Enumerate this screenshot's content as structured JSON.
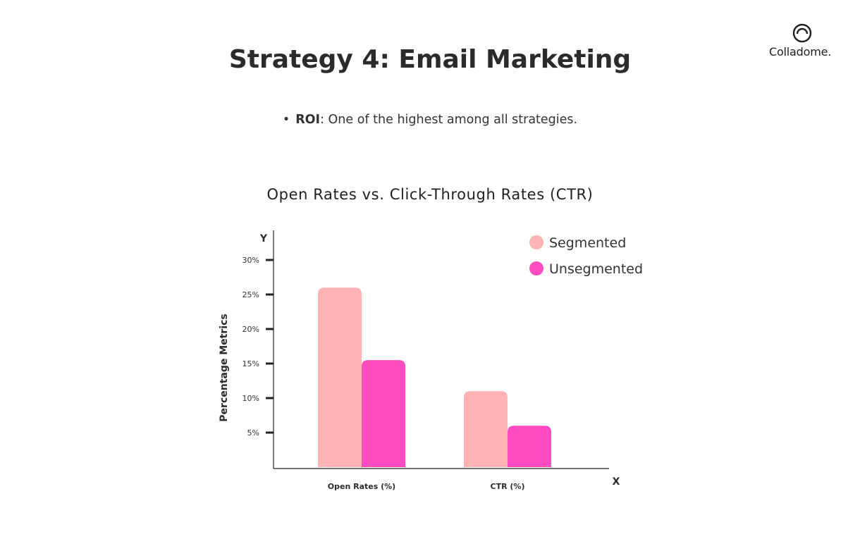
{
  "header": {
    "logo_text": "Colladome.",
    "title": "Strategy 4: Email Marketing"
  },
  "bullet": {
    "key": "ROI",
    "text": ": One of the highest among all strategies."
  },
  "colors": {
    "segmented": "#FFB3B3",
    "unsegmented": "#FF4DC0",
    "axis": "#222222",
    "text": "#2b2b2b"
  },
  "chart_data": {
    "type": "bar",
    "title": "Open Rates vs. Click-Through Rates (CTR)",
    "xlabel": "X",
    "ylabel": "Percentage Metrics",
    "y_axis_marker": "Y",
    "categories": [
      "Open Rates (%)",
      "CTR (%)"
    ],
    "series": [
      {
        "name": "Segmented",
        "values": [
          26,
          11
        ]
      },
      {
        "name": "Unsegmented",
        "values": [
          15.5,
          6
        ]
      }
    ],
    "yticks": [
      5,
      10,
      15,
      20,
      25,
      30
    ],
    "ytick_labels": [
      "5%",
      "10%",
      "15%",
      "20%",
      "25%",
      "30%"
    ],
    "ylim": [
      0,
      35
    ],
    "legend_position": "top-right",
    "grid": false
  }
}
